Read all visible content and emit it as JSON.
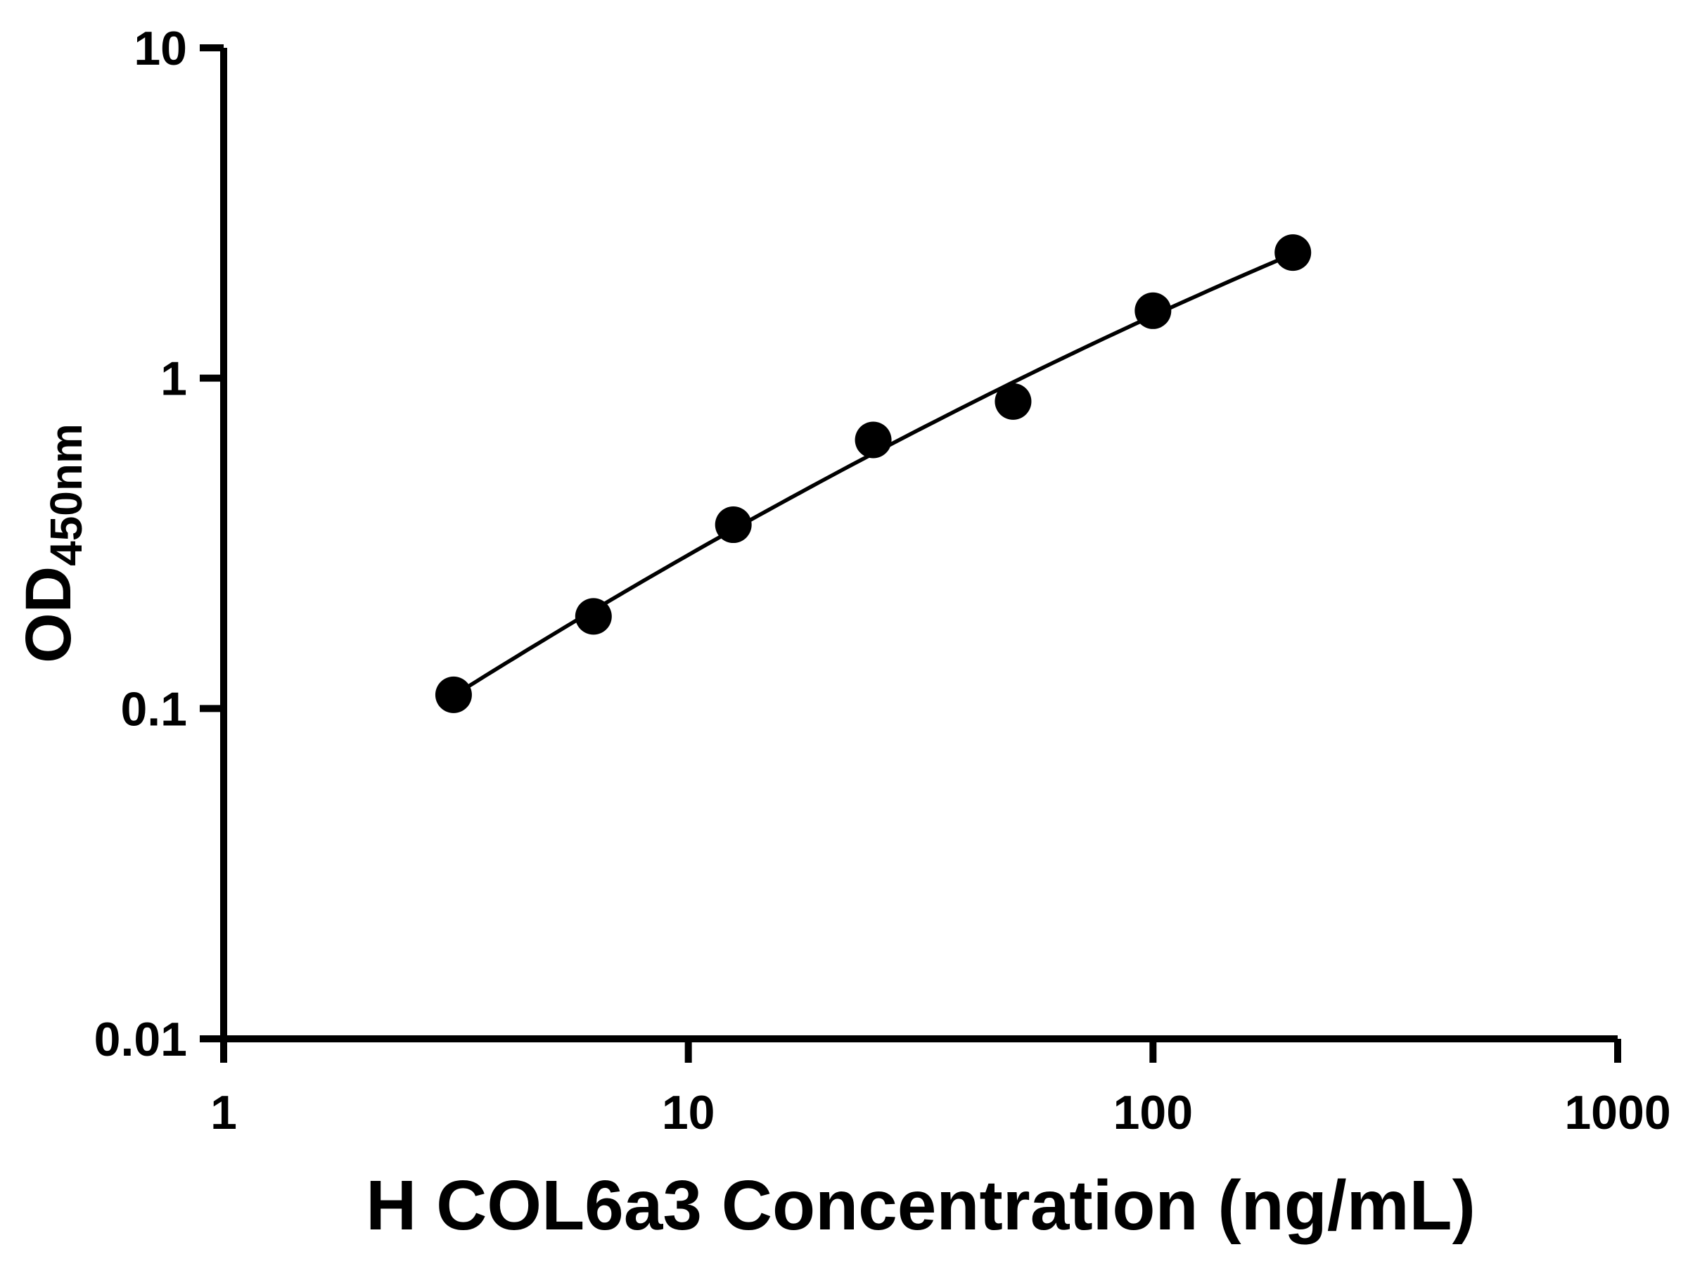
{
  "chart_data": {
    "type": "scatter",
    "title": "",
    "xlabel": "H COL6a3 Concentration (ng/mL)",
    "ylabel_main": "OD",
    "ylabel_sub": "450nm",
    "x_scale": "log",
    "y_scale": "log",
    "xlim": [
      1,
      1000
    ],
    "ylim": [
      0.01,
      10
    ],
    "x_ticks": [
      1,
      10,
      100,
      1000
    ],
    "x_tick_labels": [
      "1",
      "10",
      "100",
      "1000"
    ],
    "y_ticks": [
      10,
      1,
      0.1,
      0.01
    ],
    "y_tick_labels": [
      "10",
      "1",
      "0.1",
      "0.01"
    ],
    "grid": false,
    "legend": "none",
    "fit_line": true,
    "points": {
      "x": [
        3.125,
        6.25,
        12.5,
        25,
        50,
        100,
        200
      ],
      "y": [
        0.11,
        0.19,
        0.36,
        0.65,
        0.85,
        1.6,
        2.4
      ]
    },
    "marker_color": "#000000",
    "line_color": "#000000",
    "axis_color": "#000000",
    "background": "#ffffff"
  }
}
